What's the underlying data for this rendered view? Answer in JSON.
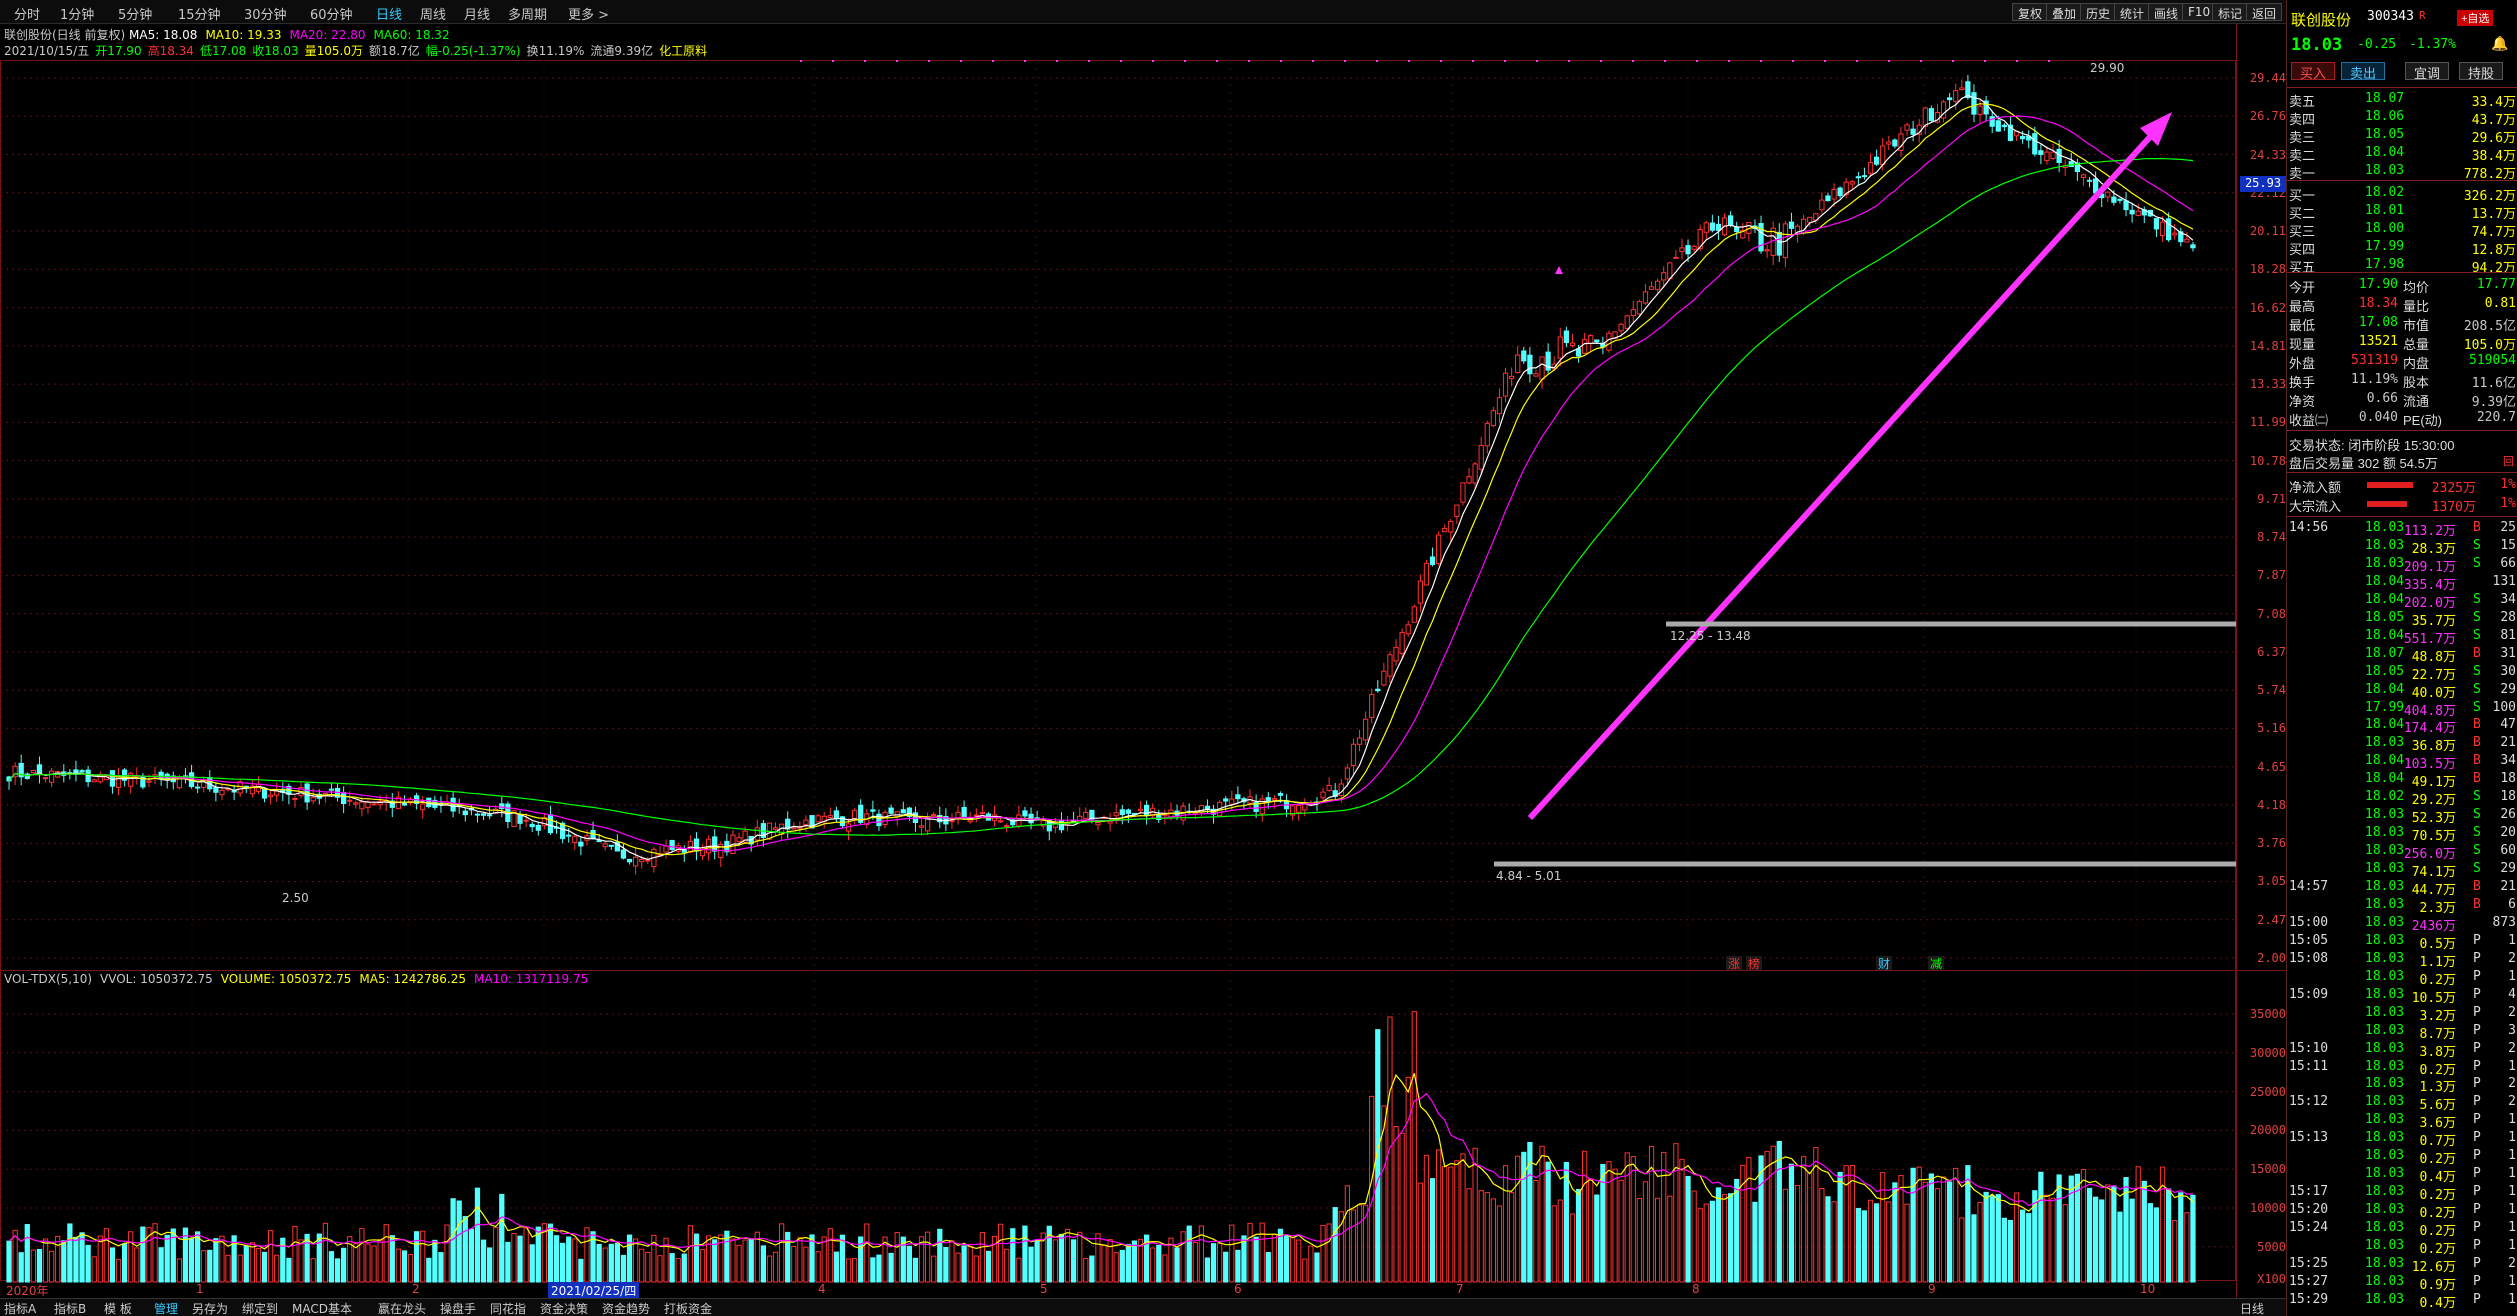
{
  "toolbar": {
    "periods": [
      "分时",
      "1分钟",
      "5分钟",
      "15分钟",
      "30分钟",
      "60分钟",
      "日线",
      "周线",
      "月线",
      "多周期",
      "更多 >"
    ],
    "active_period": "日线",
    "right_buttons": [
      "复权",
      "叠加",
      "历史",
      "统计",
      "画线",
      "F10",
      "标记",
      "返回"
    ]
  },
  "chart": {
    "title": "联创股份(日线 前复权)",
    "ma_legend": [
      {
        "label": "MA5: 18.08",
        "color": "#ffffff"
      },
      {
        "label": "MA10: 19.33",
        "color": "#ffff00"
      },
      {
        "label": "MA20: 22.80",
        "color": "#ff00ff"
      },
      {
        "label": "MA60: 18.32",
        "color": "#00ff00"
      }
    ],
    "ohlc_line": [
      {
        "text": "2021/10/15/五",
        "color": "#c8c8c8"
      },
      {
        "text": "开17.90",
        "color": "#00ff00"
      },
      {
        "text": "高18.34",
        "color": "#ff3030"
      },
      {
        "text": "低17.08",
        "color": "#00ff00"
      },
      {
        "text": "收18.03",
        "color": "#00ff00"
      },
      {
        "text": "量105.0万",
        "color": "#ffff00"
      },
      {
        "text": "额18.7亿",
        "color": "#c8c8c8"
      },
      {
        "text": "幅-0.25(-1.37%)",
        "color": "#00ff00"
      },
      {
        "text": "换11.19%",
        "color": "#c8c8c8"
      },
      {
        "text": "流通9.39亿",
        "color": "#c8c8c8"
      },
      {
        "text": "化工原料",
        "color": "#ffff00"
      }
    ],
    "price_ticks": [
      "29.44",
      "26.76",
      "24.33",
      "22.12",
      "20.11",
      "18.28",
      "16.62",
      "14.81",
      "13.33",
      "11.99",
      "10.78",
      "9.71",
      "8.74",
      "7.87",
      "7.08",
      "6.37",
      "5.74",
      "5.16",
      "4.65",
      "4.18",
      "3.76",
      "3.05",
      "2.47",
      "2.00"
    ],
    "current_price_tag": "25.93",
    "high_label": "29.90",
    "low_label": "2.50",
    "range_label_1": "12.25 - 13.48",
    "range_label_2": "4.84 - 5.01",
    "event_markers": [
      {
        "text": "涨",
        "color": "#ff3030"
      },
      {
        "text": "榜",
        "color": "#ff3030"
      },
      {
        "text": "财",
        "color": "#3cf"
      },
      {
        "text": "减",
        "color": "#00ff00"
      }
    ],
    "volume_legend": [
      {
        "text": "VOL-TDX(5,10)",
        "color": "#c8c8c8"
      },
      {
        "text": "VVOL: 1050372.75",
        "color": "#c8c8c8"
      },
      {
        "text": "VOLUME: 1050372.75",
        "color": "#ffff00"
      },
      {
        "text": "MA5: 1242786.25",
        "color": "#ffff00"
      },
      {
        "text": "MA10: 1317119.75",
        "color": "#ff00ff"
      }
    ],
    "volume_ticks": [
      "35000",
      "30000",
      "25000",
      "20000",
      "15000",
      "10000",
      "5000",
      "X100"
    ],
    "x_labels": [
      "2020年",
      "1",
      "2",
      "2021/02/25/四",
      "4",
      "5",
      "6",
      "7",
      "8",
      "9",
      "10"
    ]
  },
  "bottom_tabs": [
    "指标A",
    "指标B",
    "模 板",
    "管理",
    "另存为",
    "绑定到",
    "MACD基本",
    "嬴在龙头",
    "操盘手",
    "同花指",
    "资金决策",
    "资金趋势",
    "打板资金",
    "日线"
  ],
  "chart_data": {
    "type": "candlestick",
    "title": "",
    "ylabel": "",
    "xlabel": "",
    "ylim": [
      2.0,
      29.9
    ],
    "x_period_labels": [
      "2020年",
      "1",
      "2",
      "3",
      "4",
      "5",
      "6",
      "7",
      "8",
      "9",
      "10"
    ],
    "series": [
      {
        "name": "MA5",
        "last": 18.08
      },
      {
        "name": "MA10",
        "last": 19.33
      },
      {
        "name": "MA20",
        "last": 22.8
      },
      {
        "name": "MA60",
        "last": 18.32
      }
    ],
    "price_path": [
      {
        "x": "2020年",
        "close": 3.5
      },
      {
        "x": "1",
        "close": 3.3
      },
      {
        "x": "2",
        "close": 2.8
      },
      {
        "x": "3",
        "close": 3.1
      },
      {
        "x": "4",
        "close": 3.1
      },
      {
        "x": "5",
        "close": 3.0
      },
      {
        "x": "6",
        "close": 3.1
      },
      {
        "x": "7",
        "close": 4.4
      },
      {
        "x": "8",
        "close": 12.3
      },
      {
        "x": "9",
        "close": 20.5
      },
      {
        "x": "9",
        "close": 29.9
      },
      {
        "x": "10",
        "close": 18.03
      }
    ],
    "volume_ylim": [
      0,
      38000
    ],
    "volume_unit": "X100"
  },
  "quote": {
    "name": "联创股份",
    "code": "300343",
    "tag": "R",
    "add_button": "+自选",
    "price": "18.03",
    "change": "-0.25",
    "change_pct": "-1.37%",
    "actions": [
      "买入",
      "卖出",
      "宜调",
      "持股"
    ],
    "asks": [
      {
        "label": "卖五",
        "price": "18.07",
        "vol": "33.4万"
      },
      {
        "label": "卖四",
        "price": "18.06",
        "vol": "43.7万"
      },
      {
        "label": "卖三",
        "price": "18.05",
        "vol": "29.6万"
      },
      {
        "label": "卖二",
        "price": "18.04",
        "vol": "38.4万"
      },
      {
        "label": "卖一",
        "price": "18.03",
        "vol": "778.2万"
      }
    ],
    "bids": [
      {
        "label": "买一",
        "price": "18.02",
        "vol": "326.2万"
      },
      {
        "label": "买二",
        "price": "18.01",
        "vol": "13.7万"
      },
      {
        "label": "买三",
        "price": "18.00",
        "vol": "74.7万"
      },
      {
        "label": "买四",
        "price": "17.99",
        "vol": "12.8万"
      },
      {
        "label": "买五",
        "price": "17.98",
        "vol": "94.2万"
      }
    ],
    "stats": [
      {
        "l1": "今开",
        "v1": "17.90",
        "c1": "#00ff00",
        "l2": "均价",
        "v2": "17.77",
        "c2": "#00ff00"
      },
      {
        "l1": "最高",
        "v1": "18.34",
        "c1": "#ff3030",
        "l2": "量比",
        "v2": "0.81",
        "c2": "#ffff00"
      },
      {
        "l1": "最低",
        "v1": "17.08",
        "c1": "#00ff00",
        "l2": "市值",
        "v2": "208.5亿",
        "c2": "#c8c8c8"
      },
      {
        "l1": "现量",
        "v1": "13521",
        "c1": "#ffff00",
        "l2": "总量",
        "v2": "105.0万",
        "c2": "#ffff00"
      },
      {
        "l1": "外盘",
        "v1": "531319",
        "c1": "#ff3030",
        "l2": "内盘",
        "v2": "519054",
        "c2": "#00ff00"
      },
      {
        "l1": "换手",
        "v1": "11.19%",
        "c1": "#c8c8c8",
        "l2": "股本",
        "v2": "11.6亿",
        "c2": "#c8c8c8"
      },
      {
        "l1": "净资",
        "v1": "0.66",
        "c1": "#c8c8c8",
        "l2": "流通",
        "v2": "9.39亿",
        "c2": "#c8c8c8"
      },
      {
        "l1": "收益㈡",
        "v1": "0.040",
        "c1": "#c8c8c8",
        "l2": "PE(动)",
        "v2": "220.7",
        "c2": "#c8c8c8"
      }
    ],
    "trade_status": "交易状态: 闭市阶段 15:30:00",
    "after_hours": "盘后交易量 302 额 54.5万",
    "flows": [
      {
        "label": "净流入额",
        "value": "2325万",
        "pct": "1%"
      },
      {
        "label": "大宗流入",
        "value": "1370万",
        "pct": "1%"
      }
    ],
    "ticks": [
      {
        "t": "14:56",
        "p": "18.03",
        "v": "113.2万",
        "s": "B",
        "n": "25"
      },
      {
        "t": "",
        "p": "18.03",
        "v": "28.3万",
        "s": "S",
        "n": "15"
      },
      {
        "t": "",
        "p": "18.03",
        "v": "209.1万",
        "s": "S",
        "n": "66"
      },
      {
        "t": "",
        "p": "18.04",
        "v": "335.4万",
        "s": "",
        "n": "131"
      },
      {
        "t": "",
        "p": "18.04",
        "v": "202.0万",
        "s": "S",
        "n": "34"
      },
      {
        "t": "",
        "p": "18.05",
        "v": "35.7万",
        "s": "S",
        "n": "28"
      },
      {
        "t": "",
        "p": "18.04",
        "v": "551.7万",
        "s": "S",
        "n": "81"
      },
      {
        "t": "",
        "p": "18.07",
        "v": "48.8万",
        "s": "B",
        "n": "31"
      },
      {
        "t": "",
        "p": "18.05",
        "v": "22.7万",
        "s": "S",
        "n": "30"
      },
      {
        "t": "",
        "p": "18.04",
        "v": "40.0万",
        "s": "S",
        "n": "29"
      },
      {
        "t": "",
        "p": "17.99",
        "v": "404.8万",
        "s": "S",
        "n": "100"
      },
      {
        "t": "",
        "p": "18.04",
        "v": "174.4万",
        "s": "B",
        "n": "47"
      },
      {
        "t": "",
        "p": "18.03",
        "v": "36.8万",
        "s": "B",
        "n": "21"
      },
      {
        "t": "",
        "p": "18.04",
        "v": "103.5万",
        "s": "B",
        "n": "34"
      },
      {
        "t": "",
        "p": "18.04",
        "v": "49.1万",
        "s": "B",
        "n": "18"
      },
      {
        "t": "",
        "p": "18.02",
        "v": "29.2万",
        "s": "S",
        "n": "18"
      },
      {
        "t": "",
        "p": "18.03",
        "v": "52.3万",
        "s": "S",
        "n": "26"
      },
      {
        "t": "",
        "p": "18.03",
        "v": "70.5万",
        "s": "S",
        "n": "20"
      },
      {
        "t": "",
        "p": "18.03",
        "v": "256.0万",
        "s": "S",
        "n": "60"
      },
      {
        "t": "",
        "p": "18.03",
        "v": "74.1万",
        "s": "S",
        "n": "29"
      },
      {
        "t": "14:57",
        "p": "18.03",
        "v": "44.7万",
        "s": "B",
        "n": "21"
      },
      {
        "t": "",
        "p": "18.03",
        "v": "2.3万",
        "s": "B",
        "n": "6"
      },
      {
        "t": "15:00",
        "p": "18.03",
        "v": "2436万",
        "s": "",
        "n": "873"
      },
      {
        "t": "15:05",
        "p": "18.03",
        "v": "0.5万",
        "s": "P",
        "n": "1"
      },
      {
        "t": "15:08",
        "p": "18.03",
        "v": "1.1万",
        "s": "P",
        "n": "2"
      },
      {
        "t": "",
        "p": "18.03",
        "v": "0.2万",
        "s": "P",
        "n": "1"
      },
      {
        "t": "15:09",
        "p": "18.03",
        "v": "10.5万",
        "s": "P",
        "n": "4"
      },
      {
        "t": "",
        "p": "18.03",
        "v": "3.2万",
        "s": "P",
        "n": "2"
      },
      {
        "t": "",
        "p": "18.03",
        "v": "8.7万",
        "s": "P",
        "n": "3"
      },
      {
        "t": "15:10",
        "p": "18.03",
        "v": "3.8万",
        "s": "P",
        "n": "2"
      },
      {
        "t": "15:11",
        "p": "18.03",
        "v": "0.2万",
        "s": "P",
        "n": "1"
      },
      {
        "t": "",
        "p": "18.03",
        "v": "1.3万",
        "s": "P",
        "n": "2"
      },
      {
        "t": "15:12",
        "p": "18.03",
        "v": "5.6万",
        "s": "P",
        "n": "2"
      },
      {
        "t": "",
        "p": "18.03",
        "v": "3.6万",
        "s": "P",
        "n": "1"
      },
      {
        "t": "15:13",
        "p": "18.03",
        "v": "0.7万",
        "s": "P",
        "n": "1"
      },
      {
        "t": "",
        "p": "18.03",
        "v": "0.2万",
        "s": "P",
        "n": "1"
      },
      {
        "t": "",
        "p": "18.03",
        "v": "0.4万",
        "s": "P",
        "n": "1"
      },
      {
        "t": "15:17",
        "p": "18.03",
        "v": "0.2万",
        "s": "P",
        "n": "1"
      },
      {
        "t": "15:20",
        "p": "18.03",
        "v": "0.2万",
        "s": "P",
        "n": "1"
      },
      {
        "t": "15:24",
        "p": "18.03",
        "v": "0.2万",
        "s": "P",
        "n": "1"
      },
      {
        "t": "",
        "p": "18.03",
        "v": "0.2万",
        "s": "P",
        "n": "1"
      },
      {
        "t": "15:25",
        "p": "18.03",
        "v": "12.6万",
        "s": "P",
        "n": "2"
      },
      {
        "t": "15:27",
        "p": "18.03",
        "v": "0.9万",
        "s": "P",
        "n": "1"
      },
      {
        "t": "15:29",
        "p": "18.03",
        "v": "0.4万",
        "s": "P",
        "n": "1"
      }
    ]
  },
  "colors": {
    "up": "#ff3030",
    "down": "#54ffff",
    "ma5": "#ffffff",
    "ma10": "#ffff00",
    "ma20": "#ff00ff",
    "ma60": "#00ff00",
    "grid": "#5a1010"
  }
}
